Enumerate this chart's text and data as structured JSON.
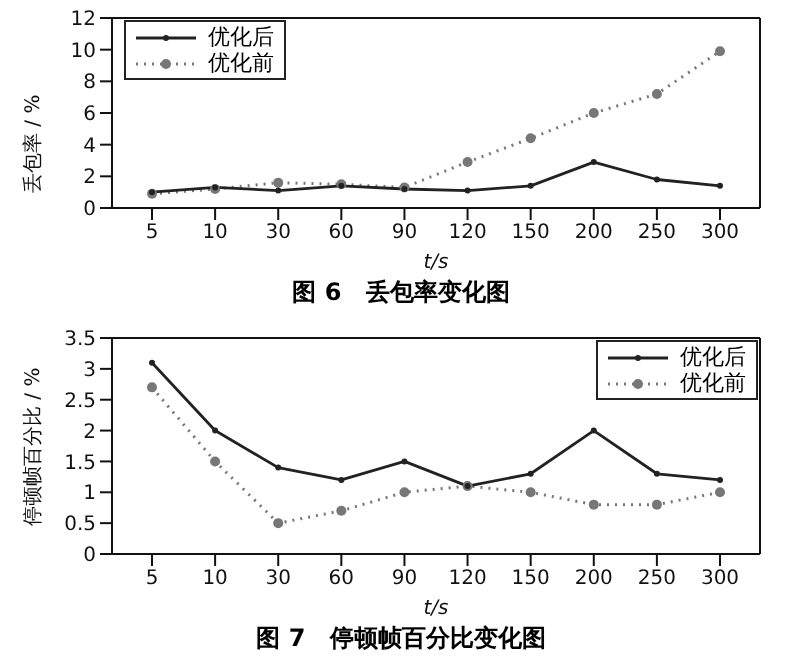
{
  "chart_data": [
    {
      "type": "line",
      "title": "图 6　丢包率变化图",
      "xlabel": "t/s",
      "ylabel": "丢包率 / %",
      "categories": [
        "5",
        "10",
        "30",
        "60",
        "90",
        "120",
        "150",
        "200",
        "250",
        "300"
      ],
      "ylim": [
        0,
        12
      ],
      "yticks": [
        0,
        2,
        4,
        6,
        8,
        10,
        12
      ],
      "legend": "top left",
      "grid": false,
      "marker": "circle",
      "series": [
        {
          "name": "优化后",
          "color": "#222222",
          "line_style": "solid",
          "values": [
            1.0,
            1.3,
            1.1,
            1.4,
            1.2,
            1.1,
            1.4,
            2.9,
            1.8,
            1.4
          ]
        },
        {
          "name": "优化前",
          "color": "#777777",
          "line_style": "dotted",
          "values": [
            0.9,
            1.2,
            1.6,
            1.5,
            1.3,
            2.9,
            4.4,
            6.0,
            7.2,
            9.9
          ]
        }
      ]
    },
    {
      "type": "line",
      "title": "图 7　停顿帧百分比变化图",
      "xlabel": "t/s",
      "ylabel": "停顿帧百分比 / %",
      "categories": [
        "5",
        "10",
        "30",
        "60",
        "90",
        "120",
        "150",
        "200",
        "250",
        "300"
      ],
      "ylim": [
        0,
        3.5
      ],
      "yticks": [
        0,
        0.5,
        1,
        1.5,
        2,
        2.5,
        3,
        3.5
      ],
      "legend": "top right",
      "grid": false,
      "marker": "circle",
      "series": [
        {
          "name": "优化后",
          "color": "#222222",
          "line_style": "solid",
          "values": [
            3.1,
            2.0,
            1.4,
            1.2,
            1.5,
            1.1,
            1.3,
            2.0,
            1.3,
            1.2
          ]
        },
        {
          "name": "优化前",
          "color": "#777777",
          "line_style": "dotted",
          "values": [
            2.7,
            1.5,
            0.5,
            0.7,
            1.0,
            1.1,
            1.0,
            0.8,
            0.8,
            1.0
          ]
        }
      ]
    }
  ]
}
